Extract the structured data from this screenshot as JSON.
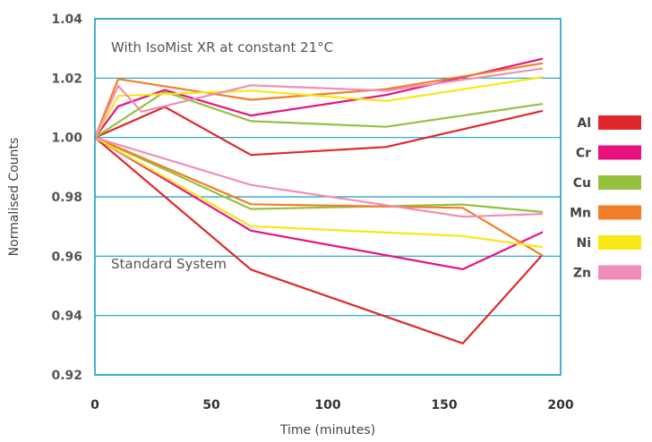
{
  "chart_data": {
    "type": "line",
    "xlabel": "Time (minutes)",
    "ylabel": "Normalised Counts",
    "xlim": [
      0,
      200
    ],
    "ylim": [
      0.92,
      1.04
    ],
    "x_ticks": [
      "0",
      "50",
      "100",
      "150",
      "200"
    ],
    "y_ticks": [
      "0.92",
      "0.94",
      "0.96",
      "0.98",
      "1.00",
      "1.02",
      "1.04"
    ],
    "grid": true,
    "legend_position": "right",
    "annotations": [
      {
        "text": "With IsoMist XR at constant 21°C"
      },
      {
        "text": "Standard System"
      }
    ],
    "series": [
      {
        "name": "Al",
        "color": "#e0282b",
        "group": "IsoMist XR",
        "x": [
          0,
          30,
          67,
          125,
          192
        ],
        "y": [
          1.0,
          1.0103,
          0.9941,
          0.9968,
          1.0089
        ]
      },
      {
        "name": "Cr",
        "color": "#e8127f",
        "group": "IsoMist XR",
        "x": [
          0,
          10,
          30,
          67,
          125,
          192
        ],
        "y": [
          1.0,
          1.0105,
          1.016,
          1.0074,
          1.0143,
          1.0265
        ]
      },
      {
        "name": "Cu",
        "color": "#96c13d",
        "group": "IsoMist XR",
        "x": [
          0,
          30,
          67,
          125,
          192
        ],
        "y": [
          1.0,
          1.0154,
          1.0055,
          1.0036,
          1.0113
        ]
      },
      {
        "name": "Mn",
        "color": "#f07f27",
        "group": "IsoMist XR",
        "x": [
          0,
          10,
          67,
          125,
          192
        ],
        "y": [
          1.0,
          1.0197,
          1.0127,
          1.0163,
          1.025
        ]
      },
      {
        "name": "Ni",
        "color": "#f7e714",
        "group": "IsoMist XR",
        "x": [
          0,
          10,
          67,
          125,
          192
        ],
        "y": [
          1.0,
          1.014,
          1.0158,
          1.0123,
          1.0203
        ]
      },
      {
        "name": "Zn",
        "color": "#f08db8",
        "group": "IsoMist XR",
        "x": [
          0,
          10,
          20,
          67,
          125,
          192
        ],
        "y": [
          1.0,
          1.0174,
          1.0087,
          1.0176,
          1.0158,
          1.0232
        ]
      },
      {
        "name": "Al",
        "color": "#e0282b",
        "group": "Standard System",
        "x": [
          0,
          67,
          158,
          192
        ],
        "y": [
          1.0,
          0.9555,
          0.9306,
          0.9603
        ]
      },
      {
        "name": "Cr",
        "color": "#e8127f",
        "group": "Standard System",
        "x": [
          0,
          67,
          158,
          192
        ],
        "y": [
          1.0,
          0.9686,
          0.9556,
          0.968
        ]
      },
      {
        "name": "Cu",
        "color": "#96c13d",
        "group": "Standard System",
        "x": [
          0,
          67,
          158,
          192
        ],
        "y": [
          1.0,
          0.9759,
          0.9774,
          0.9749
        ]
      },
      {
        "name": "Mn",
        "color": "#f07f27",
        "group": "Standard System",
        "x": [
          0,
          67,
          158,
          192
        ],
        "y": [
          1.0,
          0.9775,
          0.9763,
          0.9603
        ]
      },
      {
        "name": "Ni",
        "color": "#f7e714",
        "group": "Standard System",
        "x": [
          0,
          67,
          158,
          192
        ],
        "y": [
          1.0,
          0.9701,
          0.9668,
          0.9631
        ]
      },
      {
        "name": "Zn",
        "color": "#f08db8",
        "group": "Standard System",
        "x": [
          0,
          67,
          158,
          192
        ],
        "y": [
          1.0,
          0.984,
          0.9733,
          0.9742
        ]
      }
    ],
    "legend": [
      {
        "label": "Al",
        "color": "#e0282b"
      },
      {
        "label": "Cr",
        "color": "#e8127f"
      },
      {
        "label": "Cu",
        "color": "#96c13d"
      },
      {
        "label": "Mn",
        "color": "#f07f27"
      },
      {
        "label": "Ni",
        "color": "#f7e714"
      },
      {
        "label": "Zn",
        "color": "#f08db8"
      }
    ],
    "colors": {
      "frame": "#1aa0c2",
      "grid": "#1aa0c2"
    }
  }
}
